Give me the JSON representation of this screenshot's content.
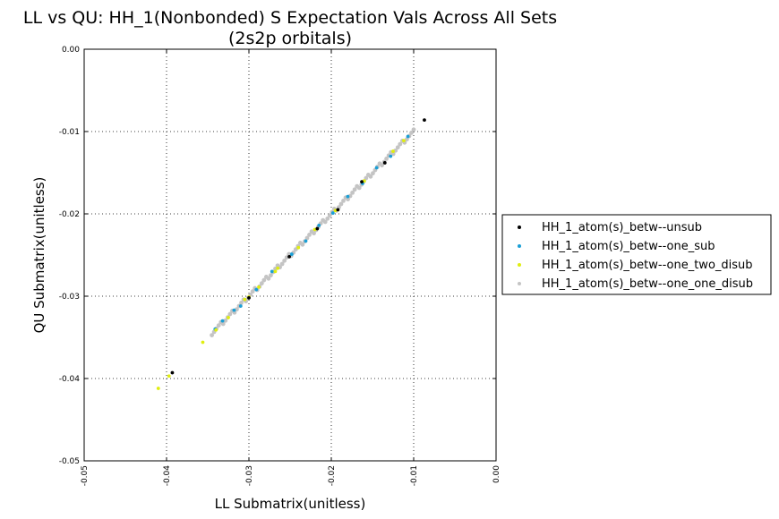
{
  "chart_data": {
    "type": "scatter",
    "title": "LL vs QU: HH_1(Nonbonded) S Expectation Vals Across All Sets",
    "subtitle": "(2s2p orbitals)",
    "xlabel": "LL Submatrix(unitless)",
    "ylabel": "QU Submatrix(unitless)",
    "xlim": [
      -0.05,
      0.0
    ],
    "ylim": [
      -0.05,
      0.0
    ],
    "xticks": [
      "-0.05",
      "-0.04",
      "-0.03",
      "-0.02",
      "-0.01",
      "0.00"
    ],
    "yticks": [
      "-0.05",
      "-0.04",
      "-0.03",
      "-0.02",
      "-0.01",
      "0.00"
    ],
    "xtick_values": [
      -0.05,
      -0.04,
      -0.03,
      -0.02,
      -0.01,
      0.0
    ],
    "ytick_values": [
      -0.05,
      -0.04,
      -0.03,
      -0.02,
      -0.01,
      0.0
    ],
    "grid": true,
    "legend_position": "right, outside plot",
    "series": [
      {
        "name": "HH_1_atom(s)_betw--unsub",
        "color": "#000000",
        "points": [
          [
            -0.0087,
            -0.0086
          ],
          [
            -0.0393,
            -0.0393
          ],
          [
            -0.0135,
            -0.0138
          ],
          [
            -0.0192,
            -0.0195
          ],
          [
            -0.0251,
            -0.0252
          ],
          [
            -0.03,
            -0.0302
          ],
          [
            -0.0163,
            -0.0161
          ],
          [
            -0.0217,
            -0.0218
          ]
        ]
      },
      {
        "name": "HH_1_atom(s)_betw--one_sub",
        "color": "#1a9fd6",
        "points": [
          [
            -0.0107,
            -0.0106
          ],
          [
            -0.0332,
            -0.033
          ],
          [
            -0.031,
            -0.0312
          ],
          [
            -0.0291,
            -0.0292
          ],
          [
            -0.0272,
            -0.027
          ],
          [
            -0.0248,
            -0.0249
          ],
          [
            -0.0231,
            -0.0233
          ],
          [
            -0.0215,
            -0.0214
          ],
          [
            -0.0198,
            -0.0199
          ],
          [
            -0.018,
            -0.0179
          ],
          [
            -0.0162,
            -0.0163
          ],
          [
            -0.0145,
            -0.0144
          ],
          [
            -0.0128,
            -0.013
          ],
          [
            -0.0341,
            -0.034
          ],
          [
            -0.0318,
            -0.0317
          ]
        ]
      },
      {
        "name": "HH_1_atom(s)_betw--one_two_disub",
        "color": "#e0ee10",
        "points": [
          [
            -0.041,
            -0.0412
          ],
          [
            -0.0397,
            -0.0397
          ],
          [
            -0.0356,
            -0.0356
          ],
          [
            -0.034,
            -0.0341
          ],
          [
            -0.0325,
            -0.0326
          ],
          [
            -0.0305,
            -0.0304
          ],
          [
            -0.0288,
            -0.0289
          ],
          [
            -0.0265,
            -0.0266
          ],
          [
            -0.024,
            -0.0241
          ],
          [
            -0.022,
            -0.0219
          ],
          [
            -0.0195,
            -0.0196
          ],
          [
            -0.016,
            -0.016
          ],
          [
            -0.0125,
            -0.0124
          ],
          [
            -0.0112,
            -0.0111
          ],
          [
            -0.0268,
            -0.027
          ],
          [
            -0.03,
            -0.0301
          ]
        ]
      },
      {
        "name": "HH_1_atom(s)_betw--one_one_disub",
        "color": "#c4c4c4",
        "range": [
          -0.0345,
          -0.01
        ],
        "count": 90
      }
    ]
  }
}
